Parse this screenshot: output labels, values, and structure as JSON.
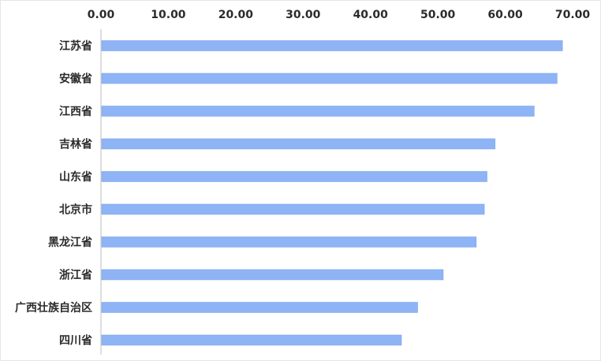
{
  "chart_data": {
    "type": "bar",
    "orientation": "horizontal",
    "categories": [
      "江苏省",
      "安徽省",
      "江西省",
      "吉林省",
      "山东省",
      "北京市",
      "黑龙江省",
      "浙江省",
      "广西壮族自治区",
      "四川省"
    ],
    "values": [
      68.5,
      67.7,
      64.3,
      58.5,
      57.3,
      56.9,
      55.7,
      50.8,
      47.0,
      44.6
    ],
    "x_ticks": [
      "0.00",
      "10.00",
      "20.00",
      "30.00",
      "40.00",
      "50.00",
      "60.00",
      "70.00"
    ],
    "xlim": [
      0,
      70
    ],
    "x_axis_position": "top",
    "grid": false,
    "bar_color": "#8fb4f5",
    "bar_stroke_color": "#7aa4ee",
    "axis_line_color": "#bdbdbd"
  }
}
